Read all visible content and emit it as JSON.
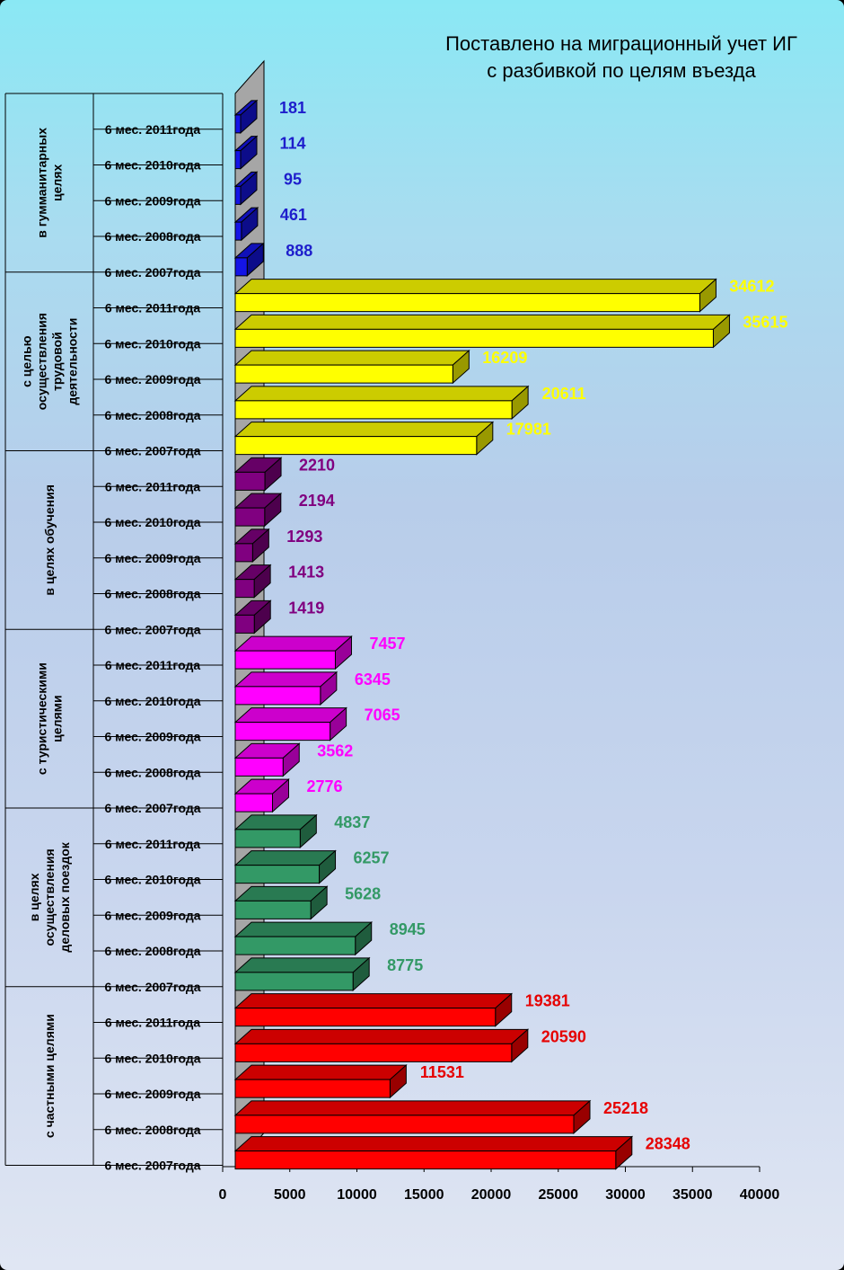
{
  "chart_data": {
    "type": "bar",
    "orientation": "horizontal",
    "title_lines": [
      "Поставлено на миграционный учет ИГ",
      "с разбивкой по целям въезда"
    ],
    "xlim": [
      0,
      40000
    ],
    "x_ticks": [
      "0",
      "5000",
      "10000",
      "15000",
      "20000",
      "25000",
      "30000",
      "35000",
      "40000"
    ],
    "groups": [
      {
        "label_lines": [
          "в гумманитарных",
          "целях"
        ],
        "color": "#1414e6",
        "label_color": "#1e1ecc",
        "categories": [
          "6 мес.  2011года",
          "6 мес.  2010года",
          "6 мес.  2009года",
          "6 мес.  2008года",
          "6 мес.  2007года"
        ],
        "values": [
          181,
          114,
          95,
          461,
          888
        ]
      },
      {
        "label_lines": [
          "с целью",
          "осуществления",
          "трудовой",
          "деятельности"
        ],
        "color": "#ffff00",
        "label_color": "#ffff00",
        "categories": [
          "6 мес.  2011года",
          "6 мес.  2010года",
          "6 мес.  2009года",
          "6 мес.  2008года",
          "6 мес.  2007года"
        ],
        "values": [
          34612,
          35615,
          16209,
          20611,
          17981
        ]
      },
      {
        "label_lines": [
          "в целях обучения"
        ],
        "color": "#800080",
        "label_color": "#800080",
        "categories": [
          "6 мес.  2011года",
          "6 мес.  2010года",
          "6 мес.  2009года",
          "6 мес.  2008года",
          "6 мес.  2007года"
        ],
        "values": [
          2210,
          2194,
          1293,
          1413,
          1419
        ]
      },
      {
        "label_lines": [
          "с туристическими",
          "целями"
        ],
        "color": "#ff00ff",
        "label_color": "#ff00ff",
        "categories": [
          "6 мес.  2011года",
          "6 мес.  2010года",
          "6 мес.  2009года",
          "6 мес.  2008года",
          "6 мес.  2007года"
        ],
        "values": [
          7457,
          6345,
          7065,
          3562,
          2776
        ]
      },
      {
        "label_lines": [
          "в целях",
          "осуществления",
          "деловых поездок"
        ],
        "color": "#339966",
        "label_color": "#339966",
        "categories": [
          "6 мес.  2011года",
          "6 мес.  2010года",
          "6 мес.  2009года",
          "6 мес.  2008года",
          "6 мес.  2007года"
        ],
        "values": [
          4837,
          6257,
          5628,
          8945,
          8775
        ]
      },
      {
        "label_lines": [
          "с частными целями"
        ],
        "color": "#ff0000",
        "label_color": "#e60000",
        "categories": [
          "6 мес.  2011года",
          "6 мес.  2010года",
          "6 мес.  2009года",
          "6 мес.  2008года",
          "6 мес.  2007года"
        ],
        "values": [
          19381,
          20590,
          11531,
          25218,
          28348
        ]
      }
    ]
  }
}
